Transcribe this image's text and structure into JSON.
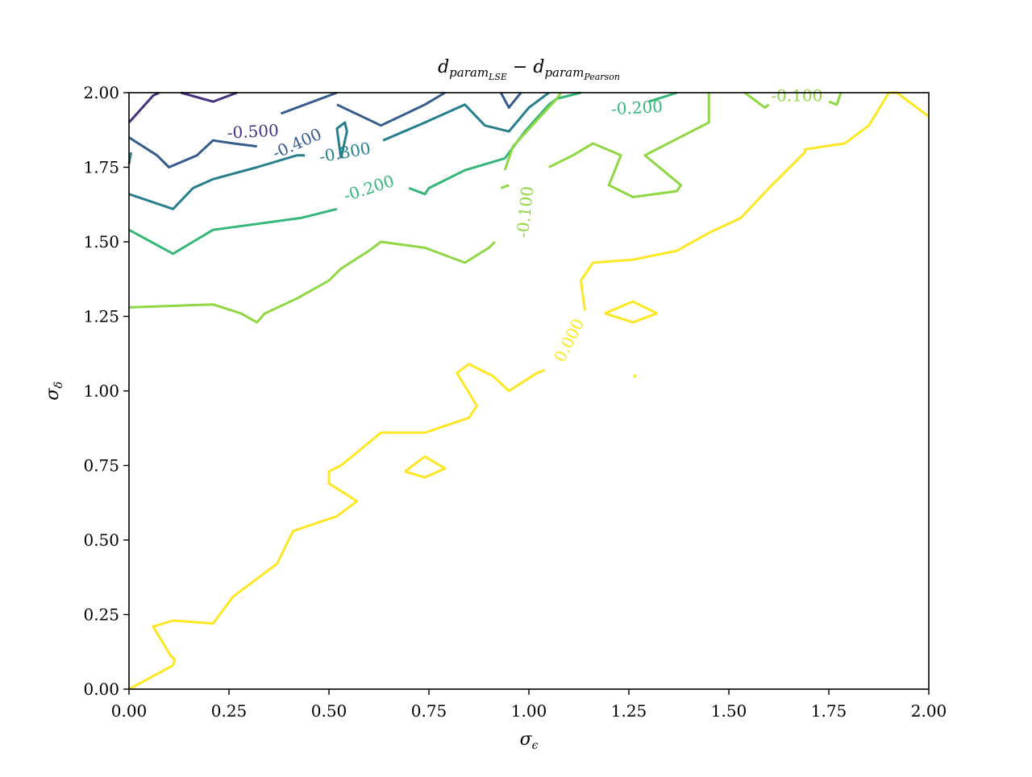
{
  "chart_data": {
    "type": "contour",
    "title": "d_param_LSE − d_param_Pearson",
    "title_parts": {
      "a": "d",
      "a_sub": "param",
      "a_subsub": "LSE",
      "op": " − ",
      "b": "d",
      "b_sub": "param",
      "b_subsub": "Pearson"
    },
    "xlabel": "σ",
    "xlabel_sub": "ϵ",
    "ylabel": "σ",
    "ylabel_sub": "δ",
    "xlim": [
      0,
      2
    ],
    "ylim": [
      0,
      2
    ],
    "xticks": [
      "0.00",
      "0.25",
      "0.50",
      "0.75",
      "1.00",
      "1.25",
      "1.50",
      "1.75",
      "2.00"
    ],
    "yticks": [
      "0.00",
      "0.25",
      "0.50",
      "0.75",
      "1.00",
      "1.25",
      "1.50",
      "1.75",
      "2.00"
    ],
    "grid": false,
    "colormap": "viridis",
    "levels": [
      {
        "level": "-0.500",
        "color": "#46327e",
        "segments": [
          [
            [
              0.0,
              1.9
            ],
            [
              0.06,
              1.99
            ],
            [
              0.075,
              2.0
            ]
          ],
          [
            [
              0.13,
              2.0
            ],
            [
              0.21,
              1.97
            ],
            [
              0.27,
              2.0
            ]
          ]
        ],
        "labels": [
          {
            "text": "-0.500",
            "x": 0.31,
            "y": 1.87,
            "angle": -3
          }
        ]
      },
      {
        "level": "-0.400",
        "color": "#365c8d",
        "segments": [
          [
            [
              0.0,
              1.85
            ],
            [
              0.07,
              1.79
            ],
            [
              0.1,
              1.75
            ],
            [
              0.17,
              1.79
            ],
            [
              0.21,
              1.84
            ],
            [
              0.26,
              1.83
            ],
            [
              0.32,
              1.82
            ]
          ],
          [
            [
              0.38,
              1.93
            ],
            [
              0.52,
              2.0
            ]
          ],
          [
            [
              0.52,
              1.96
            ],
            [
              0.63,
              1.89
            ],
            [
              0.74,
              1.96
            ],
            [
              0.79,
              2.0
            ]
          ],
          [
            [
              0.93,
              2.0
            ],
            [
              0.95,
              1.95
            ],
            [
              0.98,
              2.0
            ]
          ]
        ],
        "labels": [
          {
            "text": "-0.400",
            "x": 0.42,
            "y": 1.83,
            "angle": -24
          }
        ]
      },
      {
        "level": "-0.300",
        "color": "#277f8e",
        "segments": [
          [
            [
              0.0,
              1.66
            ],
            [
              0.11,
              1.61
            ],
            [
              0.16,
              1.68
            ],
            [
              0.21,
              1.71
            ],
            [
              0.32,
              1.75
            ],
            [
              0.42,
              1.79
            ],
            [
              0.44,
              1.79
            ]
          ],
          [
            [
              0.635,
              1.84
            ],
            [
              0.74,
              1.9
            ],
            [
              0.84,
              1.96
            ],
            [
              0.89,
              1.89
            ],
            [
              0.95,
              1.87
            ],
            [
              1.0,
              1.95
            ],
            [
              1.05,
              2.0
            ]
          ],
          [
            [
              0.0,
              1.76
            ],
            [
              0.005,
              1.8
            ]
          ],
          [
            [
              0.53,
              1.78
            ],
            [
              0.52,
              1.88
            ],
            [
              0.54,
              1.9
            ],
            [
              0.545,
              1.87
            ],
            [
              0.53,
              1.78
            ]
          ]
        ],
        "labels": [
          {
            "text": "-0.300",
            "x": 0.54,
            "y": 1.8,
            "angle": -10
          }
        ]
      },
      {
        "level": "-0.200",
        "color": "#35b779",
        "segments": [
          [
            [
              0.0,
              1.54
            ],
            [
              0.11,
              1.46
            ],
            [
              0.21,
              1.54
            ],
            [
              0.32,
              1.56
            ],
            [
              0.43,
              1.58
            ],
            [
              0.52,
              1.61
            ]
          ],
          [
            [
              0.7,
              1.68
            ],
            [
              0.74,
              1.66
            ],
            [
              0.75,
              1.68
            ],
            [
              0.84,
              1.74
            ],
            [
              0.94,
              1.78
            ],
            [
              0.99,
              1.87
            ],
            [
              1.05,
              1.96
            ],
            [
              1.07,
              1.98
            ],
            [
              1.13,
              2.0
            ]
          ],
          [
            [
              1.37,
              2.0
            ],
            [
              1.3,
              1.97
            ]
          ]
        ],
        "labels": [
          {
            "text": "-0.200",
            "x": 0.6,
            "y": 1.68,
            "angle": -18
          },
          {
            "text": "-0.200",
            "x": 1.27,
            "y": 1.95,
            "angle": -3
          }
        ]
      },
      {
        "level": "-0.100",
        "color": "#8fd744",
        "segments": [
          [
            [
              0.0,
              1.28
            ],
            [
              0.21,
              1.29
            ],
            [
              0.28,
              1.26
            ],
            [
              0.32,
              1.23
            ],
            [
              0.34,
              1.26
            ],
            [
              0.42,
              1.31
            ],
            [
              0.5,
              1.37
            ],
            [
              0.53,
              1.41
            ],
            [
              0.6,
              1.47
            ],
            [
              0.63,
              1.5
            ],
            [
              0.74,
              1.48
            ],
            [
              0.84,
              1.43
            ],
            [
              0.9,
              1.48
            ],
            [
              0.915,
              1.5
            ]
          ],
          [
            [
              0.93,
              1.68
            ],
            [
              0.95,
              1.69
            ]
          ],
          [
            [
              1.05,
              1.75
            ],
            [
              1.11,
              1.79
            ],
            [
              1.16,
              1.83
            ],
            [
              1.23,
              1.79
            ],
            [
              1.2,
              1.69
            ],
            [
              1.26,
              1.65
            ],
            [
              1.37,
              1.67
            ],
            [
              1.38,
              1.69
            ],
            [
              1.29,
              1.79
            ],
            [
              1.45,
              1.9
            ],
            [
              1.45,
              2.0
            ]
          ],
          [
            [
              1.54,
              2.0
            ],
            [
              1.59,
              1.95
            ],
            [
              1.6,
              1.96
            ]
          ],
          [
            [
              1.75,
              1.97
            ],
            [
              1.77,
              1.96
            ],
            [
              1.78,
              2.0
            ]
          ],
          [
            [
              0.94,
              1.74
            ],
            [
              0.96,
              1.82
            ],
            [
              1.07,
              1.98
            ],
            [
              1.08,
              2.0
            ]
          ]
        ],
        "labels": [
          {
            "text": "-0.100",
            "x": 0.99,
            "y": 1.6,
            "angle": -84
          },
          {
            "text": "-0.100",
            "x": 1.67,
            "y": 1.99,
            "angle": 0
          }
        ]
      },
      {
        "level": "0.000",
        "color": "#fde725",
        "segments": [
          [
            [
              0.0,
              0.0
            ],
            [
              0.11,
              0.08
            ],
            [
              0.115,
              0.1
            ],
            [
              0.105,
              0.11
            ],
            [
              0.06,
              0.21
            ],
            [
              0.11,
              0.23
            ],
            [
              0.21,
              0.22
            ],
            [
              0.26,
              0.31
            ],
            [
              0.32,
              0.37
            ],
            [
              0.37,
              0.42
            ],
            [
              0.41,
              0.53
            ],
            [
              0.52,
              0.58
            ],
            [
              0.57,
              0.63
            ],
            [
              0.5,
              0.69
            ],
            [
              0.5,
              0.73
            ],
            [
              0.53,
              0.75
            ],
            [
              0.63,
              0.86
            ],
            [
              0.74,
              0.86
            ],
            [
              0.85,
              0.91
            ],
            [
              0.87,
              0.95
            ],
            [
              0.82,
              1.06
            ],
            [
              0.85,
              1.09
            ],
            [
              0.91,
              1.05
            ],
            [
              0.95,
              1.0
            ],
            [
              1.02,
              1.06
            ],
            [
              1.04,
              1.07
            ]
          ],
          [
            [
              1.14,
              1.27
            ],
            [
              1.13,
              1.37
            ],
            [
              1.16,
              1.43
            ],
            [
              1.26,
              1.44
            ],
            [
              1.37,
              1.47
            ],
            [
              1.45,
              1.53
            ],
            [
              1.53,
              1.58
            ],
            [
              1.6,
              1.68
            ],
            [
              1.69,
              1.8
            ],
            [
              1.69,
              1.81
            ],
            [
              1.79,
              1.83
            ],
            [
              1.85,
              1.89
            ],
            [
              1.9,
              2.0
            ],
            [
              1.92,
              2.0
            ],
            [
              2.0,
              1.92
            ]
          ],
          [
            [
              0.69,
              0.73
            ],
            [
              0.74,
              0.78
            ],
            [
              0.79,
              0.74
            ],
            [
              0.74,
              0.71
            ],
            [
              0.69,
              0.73
            ]
          ],
          [
            [
              1.19,
              1.26
            ],
            [
              1.26,
              1.3
            ],
            [
              1.32,
              1.26
            ],
            [
              1.26,
              1.23
            ],
            [
              1.19,
              1.26
            ]
          ],
          [
            [
              1.265,
              1.045
            ],
            [
              1.265,
              1.055
            ]
          ]
        ],
        "labels": [
          {
            "text": "0.000",
            "x": 1.1,
            "y": 1.17,
            "angle": -63
          }
        ]
      }
    ]
  }
}
